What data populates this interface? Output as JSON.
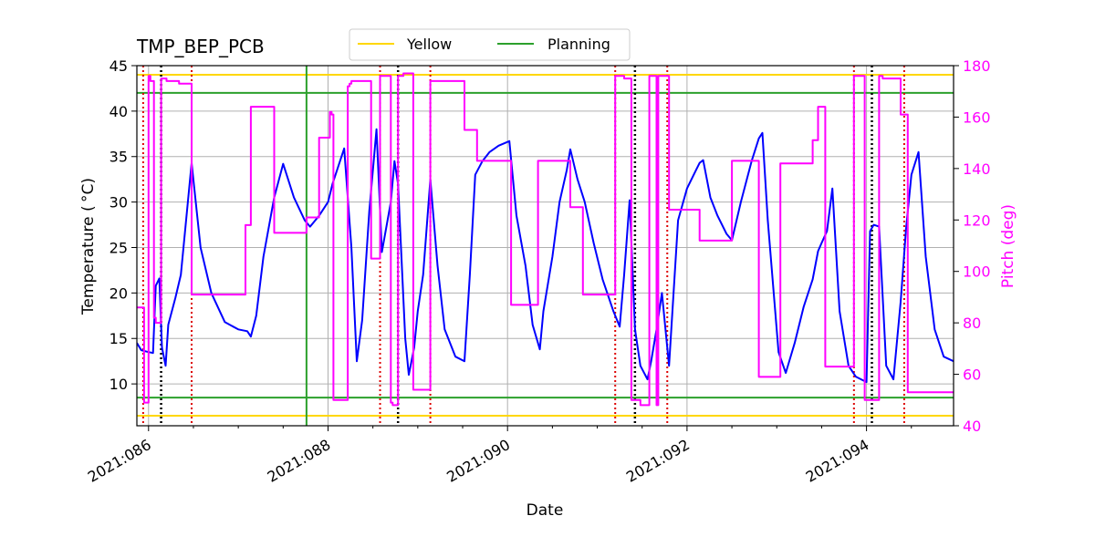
{
  "chart_data": {
    "type": "line",
    "title": "TMP_BEP_PCB",
    "xlabel": "Date",
    "ylabel": "Temperature ($^\\circ$C)",
    "ylabel_display": "Temperature ( °C)",
    "y2label": "Pitch (deg)",
    "xlim": [
      85.87,
      94.97
    ],
    "ylim": [
      5.4,
      45
    ],
    "y2lim": [
      40,
      180
    ],
    "x_ticks": [
      86,
      88,
      90,
      92,
      94
    ],
    "x_tick_labels": [
      "2021:086",
      "2021:088",
      "2021:090",
      "2021:092",
      "2021:094"
    ],
    "y_ticks": [
      10,
      15,
      20,
      25,
      30,
      35,
      40,
      45
    ],
    "y_tick_labels": [
      "10",
      "15",
      "20",
      "25",
      "30",
      "35",
      "40",
      "45"
    ],
    "y2_ticks": [
      40,
      60,
      80,
      100,
      120,
      140,
      160,
      180
    ],
    "y2_tick_labels": [
      "40",
      "60",
      "80",
      "100",
      "120",
      "140",
      "160",
      "180"
    ],
    "grid": true,
    "legend_position": "top-center",
    "legend": [
      {
        "label": "Yellow",
        "color": "#ffd700"
      },
      {
        "label": "Planning",
        "color": "#2ca02c"
      }
    ],
    "hlines": [
      {
        "name": "Yellow upper",
        "y": 44,
        "color": "#ffd700"
      },
      {
        "name": "Yellow lower",
        "y": 6.5,
        "color": "#ffd700"
      },
      {
        "name": "Planning upper",
        "y": 42,
        "color": "#2ca02c"
      },
      {
        "name": "Planning lower",
        "y": 8.5,
        "color": "#2ca02c"
      }
    ],
    "vlines_green": [
      87.76
    ],
    "vlines_red_dotted": [
      85.94,
      86.48,
      88.58,
      89.14,
      91.2,
      91.78,
      93.86,
      94.42
    ],
    "vlines_black_dotted": [
      86.14,
      88.78,
      91.42,
      94.06
    ],
    "series": [
      {
        "name": "Temperature",
        "axis": "left",
        "color": "#0000ff",
        "x": [
          85.87,
          85.92,
          86.0,
          86.05,
          86.08,
          86.12,
          86.15,
          86.19,
          86.22,
          86.3,
          86.36,
          86.48,
          86.58,
          86.7,
          86.85,
          87.0,
          87.1,
          87.14,
          87.2,
          87.28,
          87.4,
          87.5,
          87.62,
          87.74,
          87.8,
          87.9,
          88.0,
          88.05,
          88.18,
          88.26,
          88.32,
          88.38,
          88.46,
          88.54,
          88.6,
          88.7,
          88.74,
          88.78,
          88.86,
          88.9,
          88.96,
          89.0,
          89.06,
          89.14,
          89.22,
          89.3,
          89.42,
          89.52,
          89.58,
          89.64,
          89.72,
          89.8,
          89.9,
          90.02,
          90.1,
          90.2,
          90.28,
          90.36,
          90.4,
          90.5,
          90.58,
          90.66,
          90.7,
          90.78,
          90.86,
          90.96,
          91.06,
          91.18,
          91.25,
          91.3,
          91.36,
          91.42,
          91.48,
          91.56,
          91.6,
          91.66,
          91.72,
          91.8,
          91.9,
          92.0,
          92.1,
          92.14,
          92.18,
          92.26,
          92.34,
          92.44,
          92.5,
          92.6,
          92.72,
          92.8,
          92.84,
          92.9,
          93.02,
          93.1,
          93.2,
          93.3,
          93.4,
          93.46,
          93.5,
          93.56,
          93.62,
          93.7,
          93.8,
          93.88,
          93.94,
          94.0,
          94.04,
          94.08,
          94.14,
          94.22,
          94.3,
          94.38,
          94.44,
          94.5,
          94.58,
          94.66,
          94.76,
          94.86,
          94.97
        ],
        "y": [
          14.5,
          13.7,
          13.5,
          13.4,
          20.8,
          21.6,
          14.0,
          12.0,
          16.5,
          19.5,
          22.0,
          34.3,
          25.0,
          20.0,
          16.8,
          16.0,
          15.8,
          15.2,
          17.5,
          24.0,
          30.5,
          34.2,
          30.5,
          28.0,
          27.3,
          28.5,
          30.0,
          32.0,
          35.9,
          25.0,
          12.5,
          17.0,
          29.0,
          38.0,
          24.5,
          30.0,
          34.5,
          32.0,
          15.0,
          11.0,
          14.0,
          18.0,
          22.0,
          32.5,
          23.0,
          16.0,
          13.0,
          12.5,
          22.0,
          33.0,
          34.5,
          35.5,
          36.2,
          36.7,
          28.5,
          23.0,
          16.5,
          13.8,
          18.0,
          24.0,
          30.0,
          33.5,
          35.8,
          32.5,
          30.0,
          25.5,
          21.5,
          18.0,
          16.3,
          22.0,
          30.2,
          16.0,
          12.0,
          10.5,
          12.5,
          16.0,
          20.0,
          12.0,
          28.0,
          31.5,
          33.5,
          34.3,
          34.6,
          30.5,
          28.5,
          26.5,
          25.8,
          30.0,
          34.5,
          37.0,
          37.6,
          28.0,
          13.5,
          11.2,
          14.5,
          18.5,
          21.5,
          24.6,
          25.5,
          26.8,
          31.5,
          18.0,
          12.0,
          10.8,
          10.5,
          10.2,
          26.8,
          27.5,
          27.3,
          12.0,
          10.5,
          19.0,
          27.0,
          33.0,
          35.5,
          24.0,
          16.0,
          13.0,
          12.5
        ]
      },
      {
        "name": "Pitch",
        "axis": "right",
        "color": "#ff00ff",
        "x": [
          85.87,
          85.95,
          85.95,
          86.0,
          86.0,
          86.02,
          86.02,
          86.06,
          86.06,
          86.08,
          86.08,
          86.14,
          86.14,
          86.2,
          86.2,
          86.34,
          86.34,
          86.48,
          86.48,
          87.08,
          87.08,
          87.14,
          87.14,
          87.4,
          87.4,
          87.76,
          87.76,
          87.9,
          87.9,
          88.02,
          88.02,
          88.04,
          88.04,
          88.06,
          88.06,
          88.22,
          88.22,
          88.24,
          88.24,
          88.26,
          88.26,
          88.48,
          88.48,
          88.58,
          88.58,
          88.7,
          88.7,
          88.72,
          88.72,
          88.78,
          88.78,
          88.84,
          88.84,
          88.95,
          88.95,
          89.14,
          89.14,
          89.52,
          89.52,
          89.66,
          89.66,
          89.68,
          89.68,
          90.04,
          90.04,
          90.34,
          90.34,
          90.7,
          90.7,
          90.84,
          90.84,
          91.2,
          91.2,
          91.3,
          91.3,
          91.38,
          91.38,
          91.48,
          91.48,
          91.58,
          91.58,
          91.66,
          91.66,
          91.68,
          91.68,
          91.8,
          91.8,
          92.14,
          92.14,
          92.5,
          92.5,
          92.8,
          92.8,
          93.04,
          93.04,
          93.4,
          93.4,
          93.46,
          93.46,
          93.54,
          93.54,
          93.86,
          93.86,
          93.98,
          93.98,
          94.14,
          94.14,
          94.18,
          94.18,
          94.38,
          94.38,
          94.46,
          94.46,
          94.97
        ],
        "y": [
          86,
          86,
          49,
          49,
          176,
          176,
          174,
          174,
          82,
          82,
          80,
          80,
          175,
          175,
          174,
          174,
          173,
          173,
          91,
          91,
          118,
          118,
          164,
          164,
          115,
          115,
          121,
          121,
          152,
          152,
          162,
          162,
          161,
          161,
          50,
          50,
          172,
          172,
          173,
          173,
          174,
          174,
          105,
          105,
          176,
          176,
          49,
          49,
          48,
          48,
          176,
          176,
          177,
          177,
          54,
          54,
          174,
          174,
          155,
          155,
          143,
          143,
          143,
          143,
          87,
          87,
          143,
          143,
          125,
          125,
          91,
          91,
          176,
          176,
          175,
          175,
          50,
          50,
          48,
          48,
          176,
          176,
          48,
          48,
          176,
          176,
          124,
          124,
          112,
          112,
          143,
          143,
          59,
          59,
          142,
          142,
          151,
          151,
          164,
          164,
          63,
          63,
          176,
          176,
          50,
          50,
          176,
          176,
          175,
          175,
          161,
          161,
          53,
          53
        ]
      }
    ]
  }
}
